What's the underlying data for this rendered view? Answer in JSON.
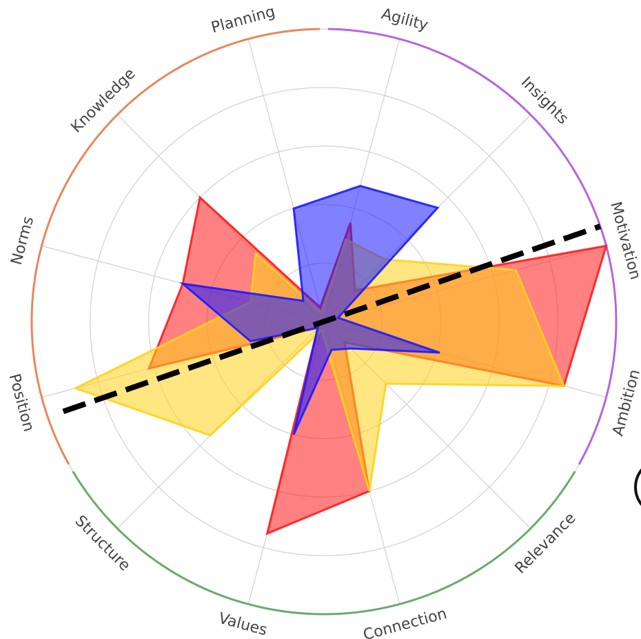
{
  "chart_data": {
    "type": "radar",
    "axes": [
      "Motivation",
      "Ambition",
      "Relevance",
      "Connection",
      "Values",
      "Structure",
      "Position",
      "Norms",
      "Knowledge",
      "Planning",
      "Agility",
      "Insights"
    ],
    "range": [
      0,
      1
    ],
    "rings": 5,
    "grid": true,
    "groups": [
      {
        "axes": [
          "Agility",
          "Insights",
          "Motivation",
          "Ambition"
        ],
        "color": "#b565e0"
      },
      {
        "axes": [
          "Relevance",
          "Connection",
          "Values",
          "Structure"
        ],
        "color": "#6aaa6a"
      },
      {
        "axes": [
          "Position",
          "Norms",
          "Knowledge",
          "Planning"
        ],
        "color": "#e8875a"
      }
    ],
    "series": [
      {
        "color": "#ff1a1a",
        "values": [
          1.0,
          0.85,
          0.1,
          0.6,
          0.75,
          0.03,
          0.62,
          0.5,
          0.6,
          0.05,
          0.35,
          0.15
        ]
      },
      {
        "color": "#ffd21a",
        "values": [
          0.68,
          0.85,
          0.3,
          0.6,
          0.03,
          0.55,
          0.88,
          0.26,
          0.33,
          0.03,
          0.29,
          0.3
        ]
      },
      {
        "color": "#1a1aff",
        "values": [
          0.05,
          0.41,
          0.13,
          0.1,
          0.4,
          0.03,
          0.26,
          0.5,
          0.1,
          0.4,
          0.48,
          0.55
        ]
      }
    ],
    "annotations": {
      "dashed_line": {
        "from_axis_angle_deg": 251,
        "to_axis_angle_deg": 71,
        "color": "#000000"
      }
    }
  }
}
